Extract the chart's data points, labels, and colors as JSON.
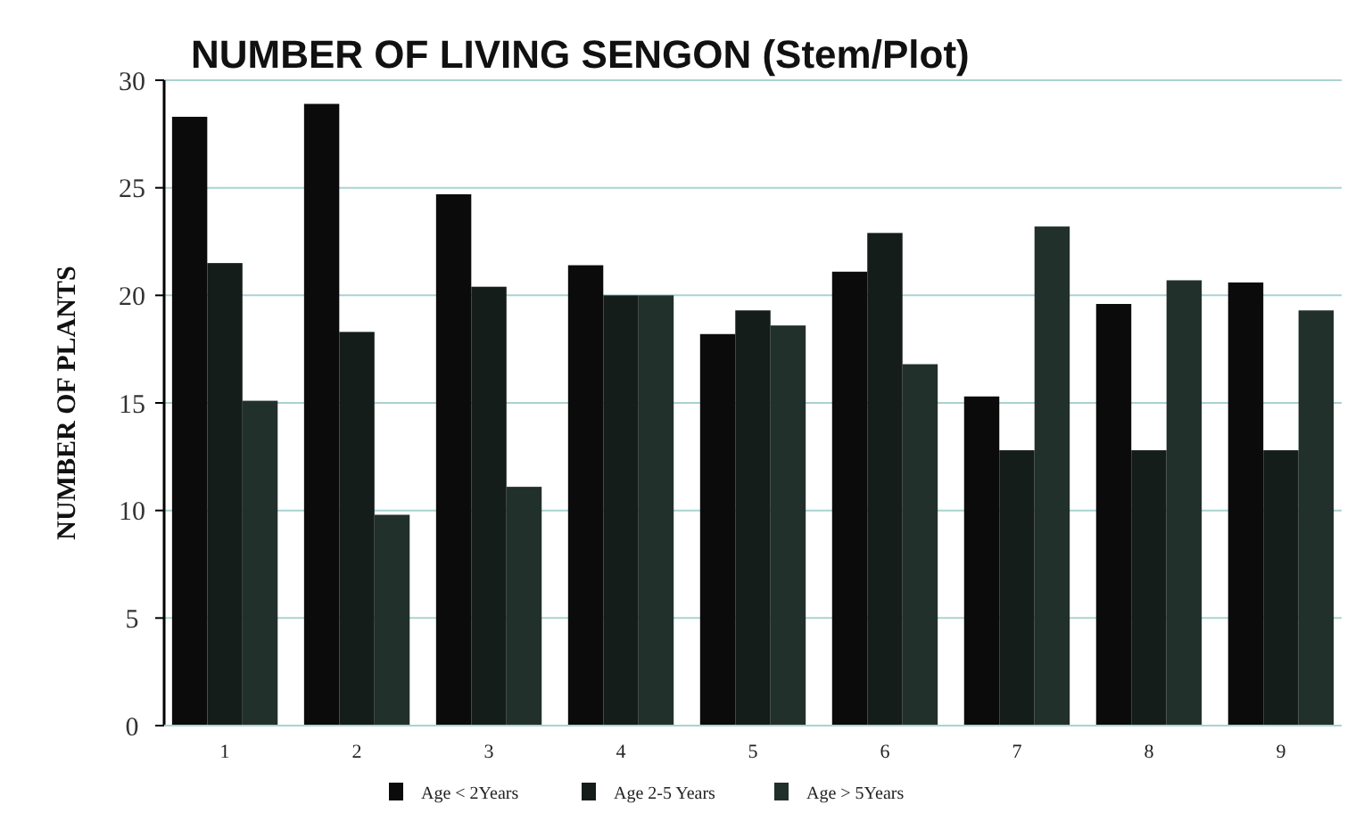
{
  "chart_data": {
    "type": "bar",
    "title": "NUMBER OF LIVING SENGON (Stem/Plot)",
    "ylabel": "NUMBER OF PLANTS",
    "categories": [
      "1",
      "2",
      "3",
      "4",
      "5",
      "6",
      "7",
      "8",
      "9"
    ],
    "series": [
      {
        "name": "Age < 2Years",
        "color": "#0b0b0b",
        "values": [
          28.3,
          28.9,
          24.7,
          21.4,
          18.2,
          21.1,
          15.3,
          19.6,
          20.6
        ]
      },
      {
        "name": "Age 2-5 Years",
        "color": "#141d1a",
        "values": [
          21.5,
          18.3,
          20.4,
          20.0,
          19.3,
          22.9,
          12.8,
          12.8,
          12.8
        ]
      },
      {
        "name": "Age > 5Years",
        "color": "#22302b",
        "values": [
          15.1,
          9.8,
          11.1,
          20.0,
          18.6,
          16.8,
          23.2,
          20.7,
          19.3
        ]
      }
    ],
    "ylim": [
      0,
      30
    ],
    "yticks": [
      0,
      5,
      10,
      15,
      20,
      25,
      30
    ],
    "grid": "y",
    "legend": "bottom"
  }
}
